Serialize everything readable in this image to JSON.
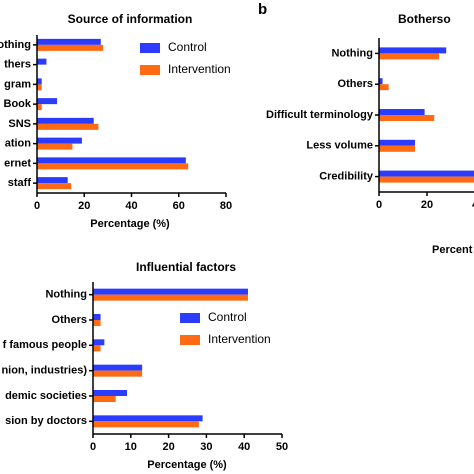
{
  "panel_label": "b",
  "chart_data": [
    {
      "type": "hbar",
      "title": "Source of information",
      "x_label": "Percentage (%)",
      "categories": [
        "othing",
        "thers",
        "gram",
        "Book",
        "SNS",
        "ation",
        "ernet",
        "staff"
      ],
      "series": [
        {
          "name": "Control",
          "color": "#2b3cff",
          "values": [
            27,
            4,
            2,
            8.5,
            24,
            19,
            63,
            13
          ]
        },
        {
          "name": "Intervention",
          "color": "#ff6a13",
          "values": [
            28,
            0,
            2,
            2,
            26,
            15,
            64,
            14.5
          ]
        }
      ],
      "xlim": [
        0,
        80
      ],
      "xticks": [
        0,
        20,
        40,
        60,
        80
      ]
    },
    {
      "type": "hbar",
      "title": "Botherso",
      "x_label": "Percent",
      "categories": [
        "Nothing",
        "Others",
        "Difficult terminology",
        "Less volume",
        "Credibility"
      ],
      "series": [
        {
          "color": "#2b3cff",
          "values": [
            28,
            1.5,
            19,
            15,
            45
          ]
        },
        {
          "color": "#ff6a13",
          "values": [
            25,
            4,
            23,
            15,
            45
          ]
        }
      ],
      "xlim": [
        0,
        60
      ],
      "xticks": [
        0,
        20,
        {
          "value": 40,
          "label": "4"
        }
      ]
    },
    {
      "type": "hbar",
      "title": "Influential factors",
      "x_label": "Percentage (%)",
      "categories": [
        "Nothing",
        "Others",
        "f famous people",
        "nion, industries)",
        "demic societies",
        "sion by doctors"
      ],
      "series": [
        {
          "name": "Control",
          "color": "#2b3cff",
          "values": [
            41,
            2,
            3,
            13,
            9,
            29
          ]
        },
        {
          "name": "Intervention",
          "color": "#ff6a13",
          "values": [
            41,
            2,
            2,
            13,
            6,
            28
          ]
        }
      ],
      "xlim": [
        0,
        50
      ],
      "xticks": [
        0,
        10,
        20,
        30,
        40,
        50
      ]
    }
  ]
}
